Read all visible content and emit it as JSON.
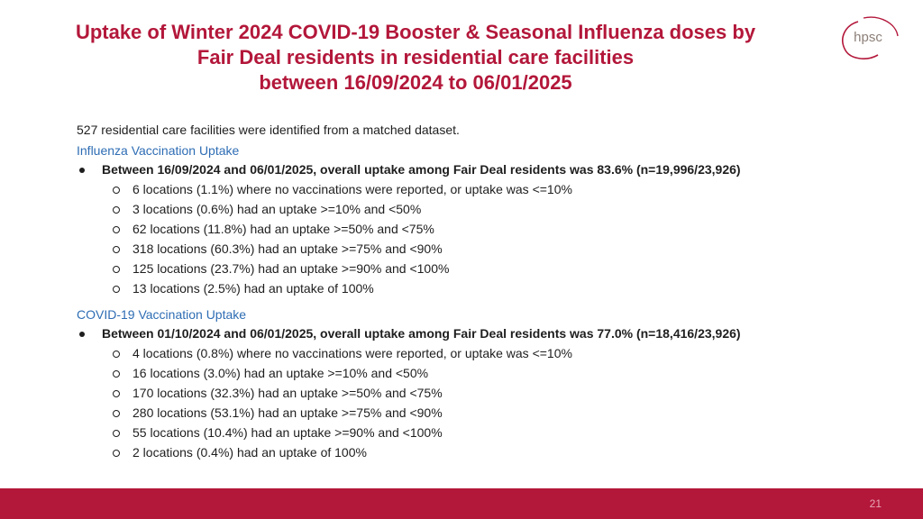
{
  "title": {
    "line1": "Uptake of Winter 2024 COVID-19 Booster & Seasonal Influenza doses by",
    "line2": "Fair Deal residents in residential care facilities",
    "line3": "between 16/09/2024 to 06/01/2025"
  },
  "logo": {
    "text": "hpsc"
  },
  "intro": "527 residential care facilities were identified from a matched dataset.",
  "influenza": {
    "heading": "Influenza Vaccination Uptake",
    "summary": "Between 16/09/2024 and 06/01/2025, overall uptake among Fair Deal residents was 83.6% (n=19,996/23,926)",
    "items": [
      "6 locations (1.1%) where no vaccinations were reported, or uptake was <=10%",
      "3 locations (0.6%) had an uptake >=10% and <50%",
      "62 locations (11.8%) had an uptake >=50% and <75%",
      "318 locations (60.3%) had an uptake >=75% and <90%",
      "125 locations (23.7%) had an uptake >=90% and <100%",
      "13 locations (2.5%) had an uptake of 100%"
    ]
  },
  "covid": {
    "heading": "COVID-19 Vaccination Uptake",
    "summary": "Between 01/10/2024 and 06/01/2025, overall uptake among Fair Deal residents was 77.0% (n=18,416/23,926)",
    "items": [
      "4 locations (0.8%) where no vaccinations were reported, or uptake was <=10%",
      "16 locations (3.0%) had an uptake >=10% and <50%",
      "170 locations (32.3%) had an uptake >=50% and <75%",
      "280 locations (53.1%) had an uptake >=75% and <90%",
      "55 locations (10.4%) had an uptake >=90% and <100%",
      "2 locations (0.4%) had an uptake of 100%"
    ]
  },
  "footer": {
    "page_number": "21"
  },
  "colors": {
    "brand": "#b3173a",
    "heading_blue": "#2e6db4",
    "text": "#1e1e1e"
  }
}
